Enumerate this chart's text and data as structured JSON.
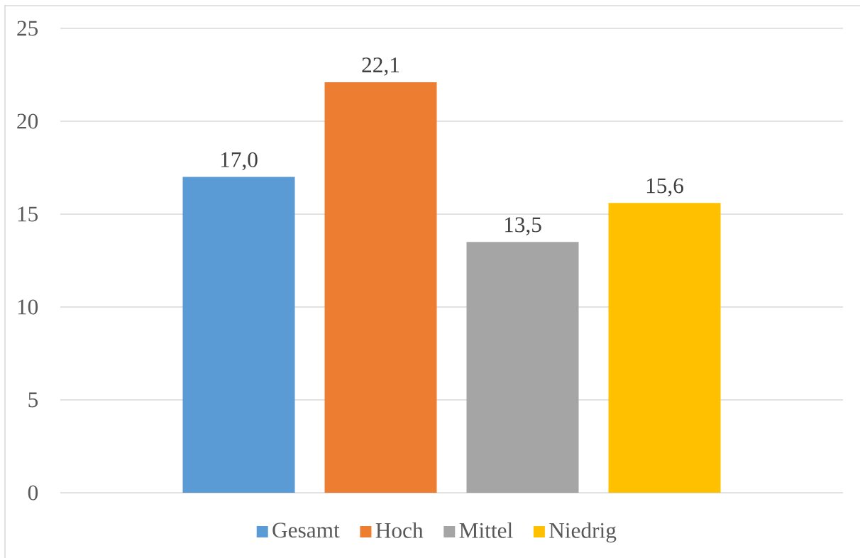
{
  "chart_data": {
    "type": "bar",
    "categories": [
      null
    ],
    "series": [
      {
        "name": "Gesamt",
        "color": "#5b9bd5",
        "values": [
          17.0
        ],
        "value_labels": [
          "17,0"
        ]
      },
      {
        "name": "Hoch",
        "color": "#ed7d31",
        "values": [
          22.1
        ],
        "value_labels": [
          "22,1"
        ]
      },
      {
        "name": "Mittel",
        "color": "#a5a5a5",
        "values": [
          13.5
        ],
        "value_labels": [
          "13,5"
        ]
      },
      {
        "name": "Niedrig",
        "color": "#ffc000",
        "values": [
          15.6
        ],
        "value_labels": [
          "15,6"
        ]
      }
    ],
    "ylim": [
      0,
      25
    ],
    "yticks": [
      0,
      5,
      10,
      15,
      20,
      25
    ],
    "grid": "y",
    "legend": "bottom"
  }
}
